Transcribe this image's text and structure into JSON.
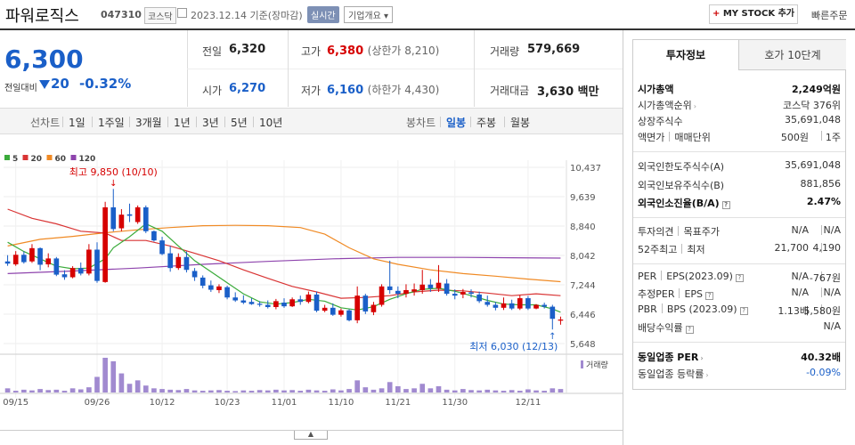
{
  "header": {
    "name": "파워로직스",
    "code": "047310",
    "market": "코스닥",
    "date": "2023.12.14 기준(장마감)",
    "realtime": "실시간",
    "company_info": "기업개요",
    "company_info_caret": "▾",
    "my_stock": "MY STOCK 추가",
    "my_stock_plus": "+",
    "quick_order": "빠른주문"
  },
  "price": {
    "current": "6,300",
    "compare_label": "전일대비",
    "change": "20",
    "change_pct": "-0.32%",
    "prev_close_label": "전일",
    "prev_close": "6,320",
    "open_label": "시가",
    "open": "6,270",
    "high_label": "고가",
    "high": "6,380",
    "upper_limit": "(상한가 8,210)",
    "low_label": "저가",
    "low": "6,160",
    "lower_limit": "(하한가 4,430)",
    "volume_label": "거래량",
    "volume": "579,669",
    "amount_label": "거래대금",
    "amount": "3,630 백만"
  },
  "period_bar": {
    "line_label": "선차트",
    "line_periods": [
      "1일",
      "1주일",
      "3개월",
      "1년",
      "3년",
      "5년",
      "10년"
    ],
    "candle_label": "봉차트",
    "candle_periods": [
      "일봉",
      "주봉",
      "월봉"
    ],
    "selected": "일봉"
  },
  "chart_data": {
    "type": "candlestick",
    "legend": [
      {
        "name": "5",
        "color": "#3bab3b"
      },
      {
        "name": "20",
        "color": "#d93434"
      },
      {
        "name": "60",
        "color": "#f08a24"
      },
      {
        "name": "120",
        "color": "#8e44ad"
      }
    ],
    "y_ticks": [
      "10,437",
      "9,639",
      "8,840",
      "8,042",
      "7,244",
      "6,446",
      "5,648"
    ],
    "ylim": [
      5648,
      10437
    ],
    "x_ticks": [
      "09/15",
      "09/26",
      "10/12",
      "10/23",
      "11/01",
      "11/10",
      "11/21",
      "11/30",
      "12/11"
    ],
    "annotations": {
      "high": "최고 9,850 (10/10)",
      "low": "최저 6,030 (12/13)",
      "high_arrow": "↓",
      "low_arrow": "↑"
    },
    "volume_label": "거래량",
    "up_color": "#d60000",
    "down_color": "#1a5fc8",
    "candles": [
      [
        7880,
        8050,
        7760,
        7820
      ],
      [
        7800,
        8160,
        7760,
        8060
      ],
      [
        8060,
        8150,
        7820,
        7860
      ],
      [
        7880,
        8350,
        7840,
        8240
      ],
      [
        8240,
        8260,
        7640,
        7790
      ],
      [
        7800,
        8100,
        7720,
        7960
      ],
      [
        7960,
        8000,
        7480,
        7520
      ],
      [
        7530,
        7640,
        7380,
        7450
      ],
      [
        7450,
        7750,
        7420,
        7700
      ],
      [
        7700,
        7850,
        7500,
        7550
      ],
      [
        7550,
        8350,
        7500,
        8200
      ],
      [
        8200,
        8400,
        7300,
        7350
      ],
      [
        7320,
        9500,
        7300,
        9350
      ],
      [
        9350,
        9850,
        8700,
        8760
      ],
      [
        8780,
        9300,
        8700,
        9150
      ],
      [
        9160,
        9450,
        8950,
        9120
      ],
      [
        8950,
        9400,
        8900,
        9350
      ],
      [
        9350,
        9400,
        8650,
        8700
      ],
      [
        8700,
        8720,
        8420,
        8450
      ],
      [
        8450,
        8550,
        8050,
        8080
      ],
      [
        8100,
        8300,
        7600,
        7700
      ],
      [
        7700,
        8100,
        7650,
        8000
      ],
      [
        8000,
        8150,
        7580,
        7650
      ],
      [
        7620,
        7700,
        7350,
        7450
      ],
      [
        7440,
        7500,
        7150,
        7220
      ],
      [
        7230,
        7360,
        7050,
        7110
      ],
      [
        7100,
        7260,
        7020,
        7200
      ],
      [
        7180,
        7220,
        6850,
        6900
      ],
      [
        6900,
        7040,
        6780,
        6820
      ],
      [
        6820,
        6960,
        6720,
        6760
      ],
      [
        6780,
        6880,
        6700,
        6720
      ],
      [
        6730,
        6800,
        6650,
        6700
      ],
      [
        6700,
        6820,
        6600,
        6640
      ],
      [
        6640,
        6860,
        6580,
        6800
      ],
      [
        6760,
        6880,
        6620,
        6660
      ],
      [
        6660,
        6900,
        6640,
        6850
      ],
      [
        6850,
        6950,
        6700,
        6780
      ],
      [
        6780,
        7060,
        6740,
        6980
      ],
      [
        6980,
        7060,
        6500,
        6540
      ],
      [
        6540,
        6700,
        6500,
        6620
      ],
      [
        6620,
        6740,
        6400,
        6430
      ],
      [
        6430,
        6600,
        6380,
        6550
      ],
      [
        6550,
        6580,
        6250,
        6280
      ],
      [
        6280,
        7200,
        6200,
        6950
      ],
      [
        6950,
        7000,
        6450,
        6520
      ],
      [
        6500,
        6780,
        6420,
        6700
      ],
      [
        6700,
        7260,
        6650,
        7200
      ],
      [
        7200,
        7900,
        7000,
        7100
      ],
      [
        7080,
        7200,
        6880,
        7000
      ],
      [
        7000,
        7260,
        6900,
        7100
      ],
      [
        7060,
        7280,
        6950,
        7120
      ],
      [
        7100,
        7650,
        7000,
        7250
      ],
      [
        7250,
        7400,
        7050,
        7150
      ],
      [
        7140,
        7780,
        7050,
        7300
      ],
      [
        7280,
        7400,
        6950,
        7000
      ],
      [
        7000,
        7120,
        6850,
        6950
      ],
      [
        6980,
        7130,
        6880,
        7050
      ],
      [
        7040,
        7120,
        6900,
        7000
      ],
      [
        6980,
        7060,
        6750,
        6800
      ],
      [
        6780,
        6950,
        6650,
        6700
      ],
      [
        6700,
        6780,
        6550,
        6620
      ],
      [
        6620,
        6900,
        6560,
        6740
      ],
      [
        6740,
        6840,
        6560,
        6600
      ],
      [
        6600,
        6960,
        6560,
        6880
      ],
      [
        6880,
        6940,
        6560,
        6600
      ],
      [
        6600,
        6720,
        6580,
        6700
      ],
      [
        6700,
        6760,
        6600,
        6650
      ],
      [
        6650,
        6700,
        6030,
        6320
      ],
      [
        6270,
        6380,
        6160,
        6300
      ]
    ],
    "ma5": [
      [
        0,
        8400
      ],
      [
        2,
        8150
      ],
      [
        4,
        7950
      ],
      [
        6,
        7750
      ],
      [
        8,
        7680
      ],
      [
        10,
        7700
      ],
      [
        12,
        7950
      ],
      [
        13,
        8250
      ],
      [
        15,
        8550
      ],
      [
        17,
        8900
      ],
      [
        19,
        8700
      ],
      [
        21,
        8300
      ],
      [
        23,
        7900
      ],
      [
        25,
        7600
      ],
      [
        27,
        7300
      ],
      [
        29,
        7000
      ],
      [
        31,
        6780
      ],
      [
        33,
        6720
      ],
      [
        35,
        6760
      ],
      [
        37,
        6850
      ],
      [
        39,
        6800
      ],
      [
        41,
        6620
      ],
      [
        43,
        6560
      ],
      [
        45,
        6650
      ],
      [
        47,
        6850
      ],
      [
        49,
        7000
      ],
      [
        51,
        7120
      ],
      [
        53,
        7150
      ],
      [
        55,
        7070
      ],
      [
        57,
        6950
      ],
      [
        59,
        6820
      ],
      [
        61,
        6720
      ],
      [
        63,
        6700
      ],
      [
        65,
        6700
      ],
      [
        67,
        6590
      ],
      [
        68,
        6500
      ]
    ],
    "ma20": [
      [
        0,
        9300
      ],
      [
        3,
        9050
      ],
      [
        6,
        8900
      ],
      [
        9,
        8700
      ],
      [
        12,
        8650
      ],
      [
        14,
        8450
      ],
      [
        17,
        8450
      ],
      [
        20,
        8300
      ],
      [
        23,
        8100
      ],
      [
        26,
        7900
      ],
      [
        29,
        7650
      ],
      [
        32,
        7420
      ],
      [
        35,
        7200
      ],
      [
        38,
        7050
      ],
      [
        41,
        6880
      ],
      [
        44,
        6900
      ],
      [
        47,
        6950
      ],
      [
        50,
        7050
      ],
      [
        53,
        7100
      ],
      [
        56,
        7080
      ],
      [
        59,
        7020
      ],
      [
        62,
        6950
      ],
      [
        65,
        7000
      ],
      [
        68,
        6950
      ]
    ],
    "ma60": [
      [
        0,
        8300
      ],
      [
        4,
        8480
      ],
      [
        8,
        8560
      ],
      [
        12,
        8660
      ],
      [
        16,
        8740
      ],
      [
        20,
        8800
      ],
      [
        24,
        8850
      ],
      [
        28,
        8860
      ],
      [
        32,
        8850
      ],
      [
        36,
        8800
      ],
      [
        39,
        8620
      ],
      [
        42,
        8250
      ],
      [
        45,
        7950
      ],
      [
        48,
        7800
      ],
      [
        52,
        7650
      ],
      [
        56,
        7550
      ],
      [
        60,
        7480
      ],
      [
        64,
        7400
      ],
      [
        68,
        7330
      ]
    ],
    "ma120": [
      [
        0,
        7550
      ],
      [
        8,
        7620
      ],
      [
        16,
        7700
      ],
      [
        24,
        7800
      ],
      [
        32,
        7880
      ],
      [
        40,
        7950
      ],
      [
        48,
        7990
      ],
      [
        56,
        7990
      ],
      [
        62,
        7980
      ],
      [
        68,
        7970
      ]
    ],
    "volume": [
      0.12,
      0.05,
      0.08,
      0.06,
      0.1,
      0.07,
      0.08,
      0.05,
      0.12,
      0.09,
      0.15,
      0.45,
      1.0,
      0.9,
      0.55,
      0.25,
      0.35,
      0.2,
      0.12,
      0.1,
      0.08,
      0.07,
      0.1,
      0.06,
      0.05,
      0.06,
      0.07,
      0.05,
      0.04,
      0.06,
      0.05,
      0.07,
      0.06,
      0.08,
      0.06,
      0.07,
      0.05,
      0.08,
      0.06,
      0.05,
      0.09,
      0.06,
      0.1,
      0.35,
      0.15,
      0.08,
      0.12,
      0.3,
      0.18,
      0.1,
      0.12,
      0.25,
      0.12,
      0.18,
      0.08,
      0.06,
      0.1,
      0.07,
      0.06,
      0.08,
      0.06,
      0.05,
      0.07,
      0.05,
      0.09,
      0.06,
      0.05,
      0.12,
      0.1
    ]
  },
  "right_panel": {
    "tabs": [
      "투자정보",
      "호가 10단계"
    ],
    "market_cap_label": "시가총액",
    "market_cap": "2,249억원",
    "cap_rank_label": "시가총액순위",
    "cap_rank": "코스닥 376위",
    "listed_shares_label": "상장주식수",
    "listed_shares": "35,691,048",
    "par_label": "액면가",
    "trade_unit_label": "매매단위",
    "par": "500원",
    "trade_unit": "1주",
    "foreign_limit_label": "외국인한도주식수(A)",
    "foreign_limit": "35,691,048",
    "foreign_hold_label": "외국인보유주식수(B)",
    "foreign_hold": "881,856",
    "foreign_ratio_label": "외국인소진율(B/A)",
    "foreign_ratio": "2.47%",
    "opinion_label": "투자의견",
    "target_label": "목표주가",
    "opinion": "N/A",
    "target": "N/A",
    "w52_high_label": "52주최고",
    "w52_low_label": "최저",
    "w52_high": "21,700",
    "w52_low": "4,190",
    "per_label": "PER",
    "eps_label": "EPS(2023.09)",
    "per": "N/A",
    "eps": "-767원",
    "est_per_label": "추정PER",
    "est_eps_label": "EPS",
    "est_per": "N/A",
    "est_eps": "N/A",
    "pbr_label": "PBR",
    "bps_label": "BPS (2023.09)",
    "pbr": "1.13배",
    "bps": "5,580원",
    "div_label": "배당수익률",
    "div": "N/A",
    "ind_per_label": "동일업종 PER",
    "ind_per": "40.32배",
    "ind_rate_label": "동일업종 등락률",
    "ind_rate": "-0.09%"
  },
  "footer": {
    "toggle_glyph": "▲"
  }
}
